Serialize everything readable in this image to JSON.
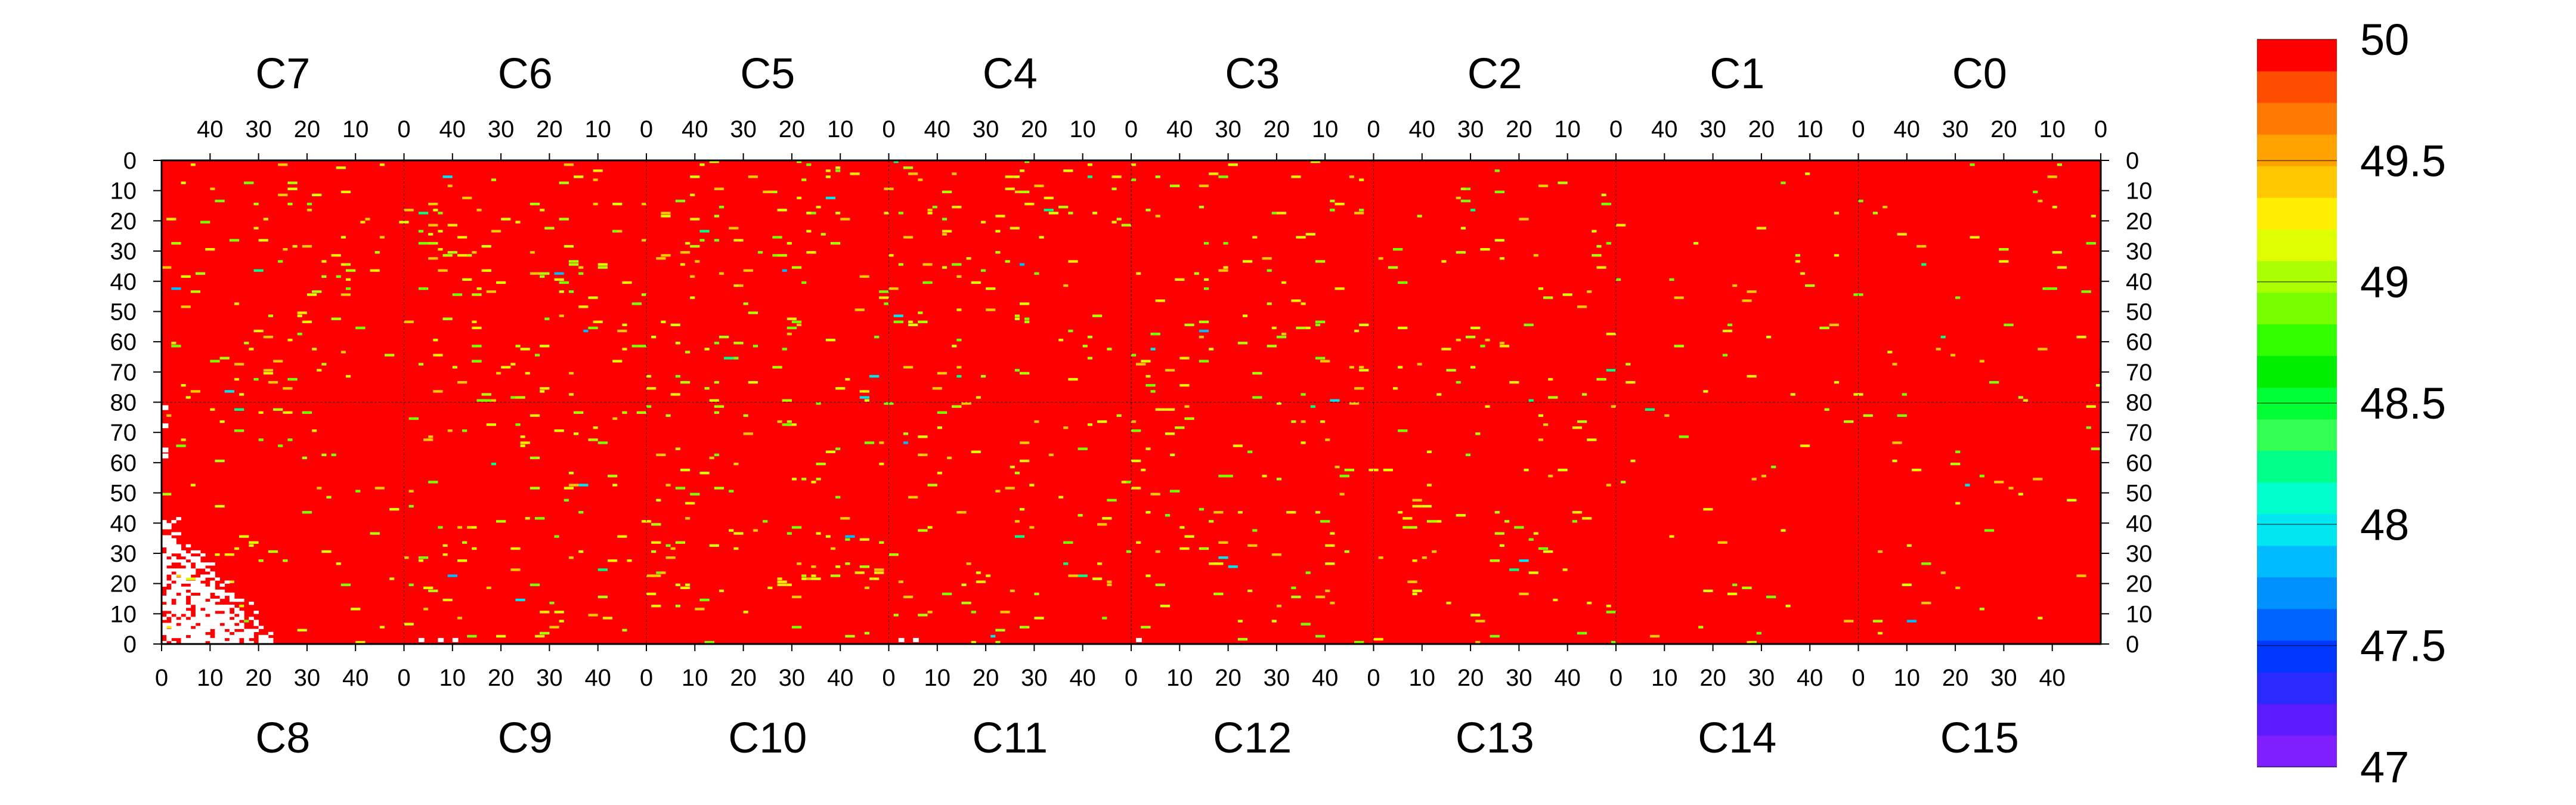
{
  "chart_data": {
    "type": "heatmap",
    "title": "",
    "top_modules": [
      "C7",
      "C6",
      "C5",
      "C4",
      "C3",
      "C2",
      "C1",
      "C0"
    ],
    "bottom_modules": [
      "C8",
      "C9",
      "C10",
      "C11",
      "C12",
      "C13",
      "C14",
      "C15"
    ],
    "top_axis_ticks": [
      "40",
      "30",
      "20",
      "10",
      "0"
    ],
    "bottom_axis_ticks": [
      "0",
      "10",
      "20",
      "30",
      "40"
    ],
    "left_axis_ticks": [
      "0",
      "10",
      "20",
      "30",
      "40",
      "50",
      "60",
      "70",
      "80",
      "70",
      "60",
      "50",
      "40",
      "30",
      "20",
      "10",
      "0"
    ],
    "right_axis_ticks": [
      "0",
      "10",
      "20",
      "30",
      "40",
      "50",
      "60",
      "70",
      "80",
      "70",
      "60",
      "50",
      "40",
      "30",
      "20",
      "10",
      "0"
    ],
    "columns_per_module": 50,
    "rows_per_half": 80,
    "zlim": [
      47,
      50
    ],
    "colorbar_ticks": [
      "50",
      "49.5",
      "49",
      "48.5",
      "48",
      "47.5",
      "47"
    ],
    "colorbar_bands": [
      "#7f1fff",
      "#5a1bff",
      "#2a2aff",
      "#0038ff",
      "#0064ff",
      "#0090ff",
      "#00bbff",
      "#00e6f0",
      "#00ffcc",
      "#00ff88",
      "#33ff55",
      "#00ff33",
      "#00ee00",
      "#33ff00",
      "#77ff00",
      "#aaff00",
      "#ddff00",
      "#ffee00",
      "#ffc800",
      "#ffa200",
      "#ff7a00",
      "#ff4d00",
      "#ff0000"
    ],
    "background_color": "#ff0000",
    "missing_color": "#ffffff",
    "anomaly_colors": [
      "#ffee00",
      "#ddff00",
      "#aaff00",
      "#77ff00",
      "#ffc800"
    ],
    "rare_colors": [
      "#00e6f0",
      "#00bbff",
      "#00ff88"
    ],
    "anomaly_density": [
      0.035,
      0.045,
      0.04,
      0.035,
      0.032,
      0.022,
      0.012,
      0.014,
      0.02,
      0.032,
      0.038,
      0.028,
      0.03,
      0.025,
      0.01,
      0.012
    ]
  }
}
